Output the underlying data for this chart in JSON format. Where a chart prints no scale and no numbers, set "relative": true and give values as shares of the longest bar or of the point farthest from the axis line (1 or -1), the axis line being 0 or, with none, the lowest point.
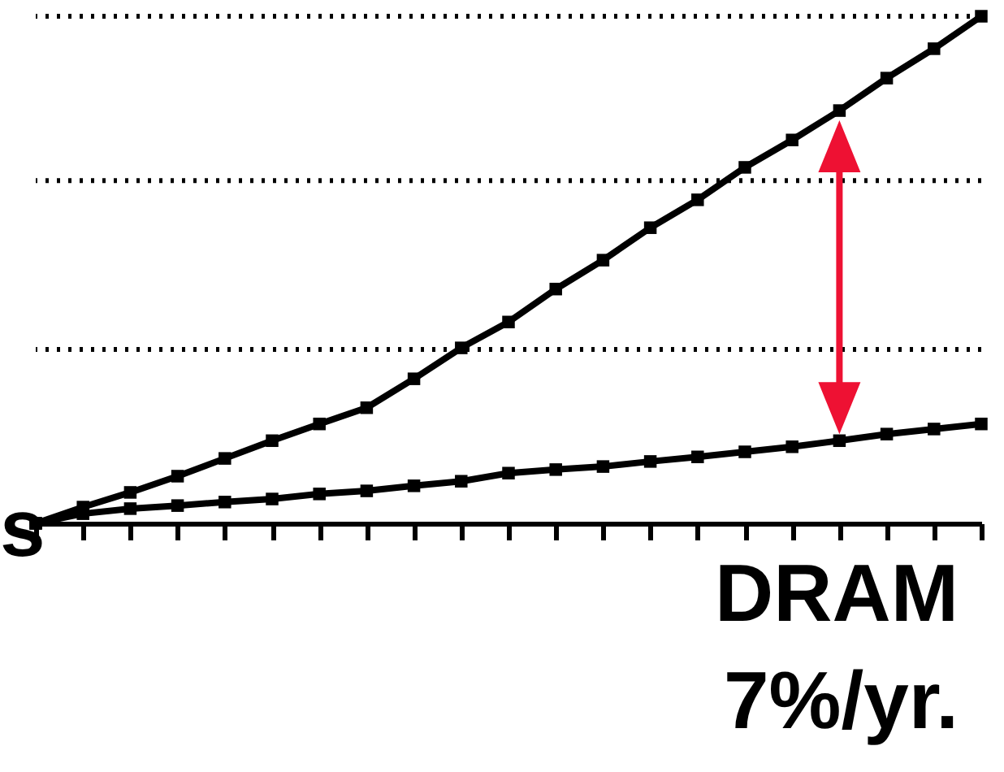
{
  "chart_data": {
    "type": "line",
    "relative": true,
    "marker": "square",
    "line_style": "solid",
    "categories": [
      null,
      null,
      null,
      null,
      null,
      null,
      null,
      null,
      null,
      null,
      null,
      null,
      null,
      null,
      null,
      null,
      null,
      null,
      null,
      null,
      null
    ],
    "series": [
      {
        "color": "#000000",
        "values": [
          0,
          0.032,
          0.061,
          0.093,
          0.128,
          0.163,
          0.196,
          0.228,
          0.285,
          0.346,
          0.397,
          0.462,
          0.519,
          0.583,
          0.638,
          0.702,
          0.756,
          0.814,
          0.878,
          0.936,
          1
        ]
      },
      {
        "color": "#000000",
        "values": [
          0,
          0.019,
          0.029,
          0.035,
          0.042,
          0.048,
          0.058,
          0.064,
          0.074,
          0.083,
          0.099,
          0.106,
          0.112,
          0.122,
          0.131,
          0.141,
          0.151,
          0.163,
          0.176,
          0.186,
          0.196
        ]
      }
    ],
    "ref_lines": [
      {
        "axis": "y",
        "value": 0.343,
        "line_style": "dotted",
        "color": "#000000"
      },
      {
        "axis": "y",
        "value": 0.676,
        "line_style": "dotted",
        "color": "#000000"
      },
      {
        "axis": "y",
        "value": 1.0,
        "line_style": "dotted",
        "color": "#000000"
      }
    ],
    "annotations": [
      "s",
      "DRAM",
      "7%/yr."
    ]
  }
}
